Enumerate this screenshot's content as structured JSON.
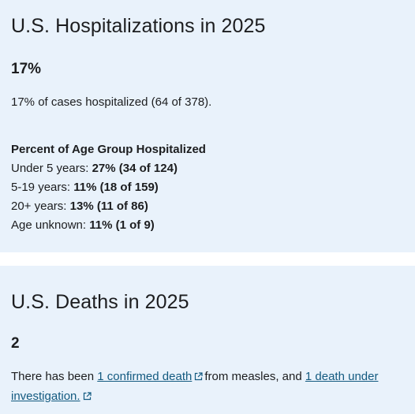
{
  "hospitalizations": {
    "title": "U.S. Hospitalizations in 2025",
    "percent": "17%",
    "summary": "17% of cases hospitalized (64 of 378).",
    "age_heading": "Percent of Age Group Hospitalized",
    "age_groups": [
      {
        "label": "Under 5 years:",
        "value": "27% (34 of 124)"
      },
      {
        "label": "5-19 years:",
        "value": "11% (18 of 159)"
      },
      {
        "label": "20+ years:",
        "value": "13% (11 of 86)"
      },
      {
        "label": "Age unknown:",
        "value": "11% (1 of 9)"
      }
    ]
  },
  "deaths": {
    "title": "U.S. Deaths in 2025",
    "count": "2",
    "text_prefix": "There has been ",
    "link1": "1 confirmed death",
    "text_middle": "from measles, and ",
    "link2_part1": "1 death under",
    "link2_part2": "investigation."
  },
  "icons": {
    "external_link": "external-link-icon"
  },
  "colors": {
    "card_background": "#e9f2fb",
    "link": "#135a80",
    "text": "#1c1d1f"
  }
}
